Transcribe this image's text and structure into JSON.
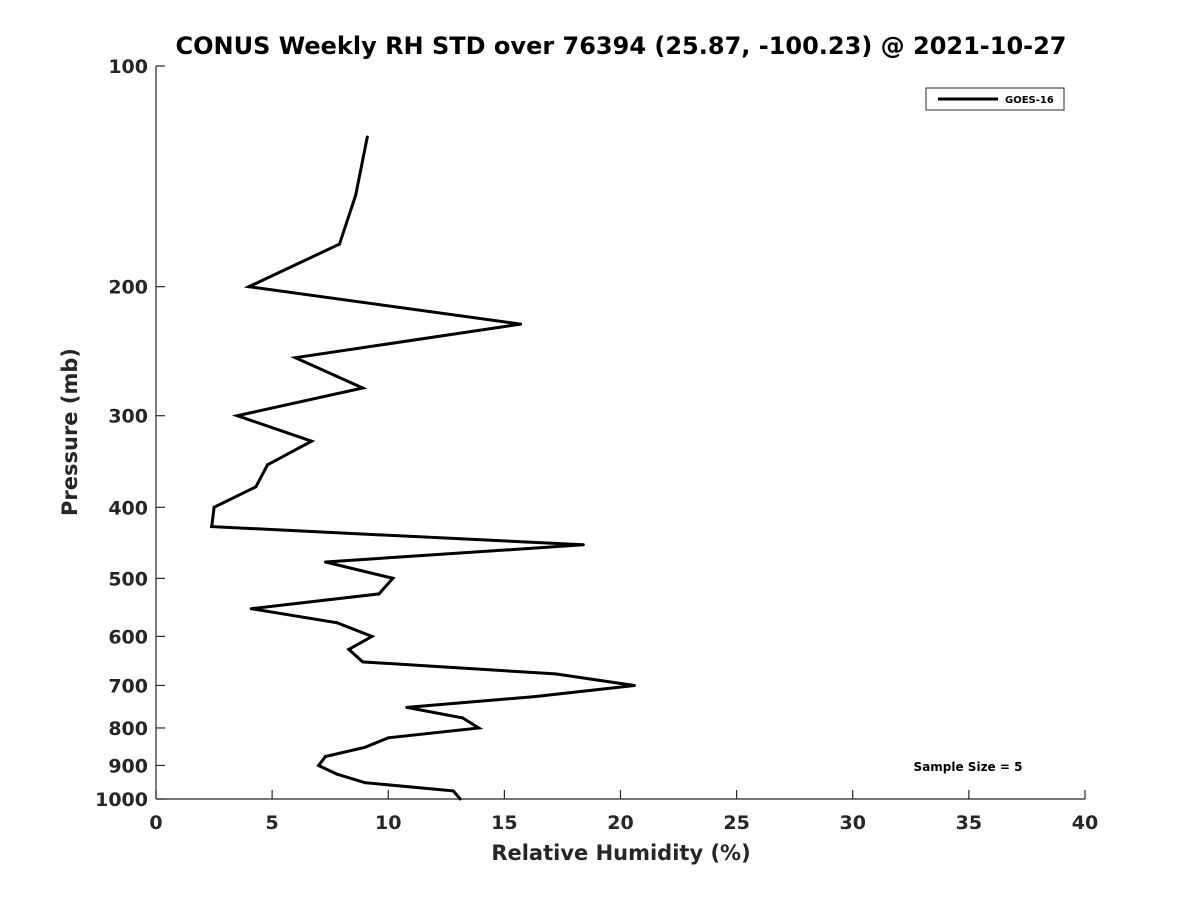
{
  "chart_data": {
    "type": "line",
    "title": "CONUS Weekly RH STD over 76394 (25.87, -100.23) @ 2021-10-27",
    "xlabel": "Relative Humidity (%)",
    "ylabel": "Pressure (mb)",
    "xlim": [
      0,
      40
    ],
    "ylim": [
      100,
      1000
    ],
    "y_scale": "log",
    "y_reversed": true,
    "x_ticks": [
      0,
      5,
      10,
      15,
      20,
      25,
      30,
      35,
      40
    ],
    "x_tick_labels": [
      "0",
      "5",
      "10",
      "15",
      "20",
      "25",
      "30",
      "35",
      "40"
    ],
    "y_ticks": [
      100,
      200,
      300,
      400,
      500,
      600,
      700,
      800,
      900,
      1000
    ],
    "y_tick_labels": [
      "100",
      "200",
      "300",
      "400",
      "500",
      "600",
      "700",
      "800",
      "900",
      "1000"
    ],
    "grid": false,
    "legend_position": "top-right",
    "annotation": "Sample Size = 5",
    "series": [
      {
        "name": "GOES-16",
        "color": "#000000",
        "points": [
          {
            "x": 9.1,
            "p": 125
          },
          {
            "x": 8.6,
            "p": 150
          },
          {
            "x": 7.9,
            "p": 175
          },
          {
            "x": 4.0,
            "p": 200
          },
          {
            "x": 15.7,
            "p": 225
          },
          {
            "x": 6.0,
            "p": 250
          },
          {
            "x": 8.9,
            "p": 275
          },
          {
            "x": 3.5,
            "p": 300
          },
          {
            "x": 6.7,
            "p": 325
          },
          {
            "x": 4.8,
            "p": 350
          },
          {
            "x": 4.3,
            "p": 375
          },
          {
            "x": 2.5,
            "p": 400
          },
          {
            "x": 2.4,
            "p": 425
          },
          {
            "x": 18.4,
            "p": 450
          },
          {
            "x": 7.3,
            "p": 475
          },
          {
            "x": 10.2,
            "p": 500
          },
          {
            "x": 9.6,
            "p": 525
          },
          {
            "x": 4.1,
            "p": 550
          },
          {
            "x": 7.8,
            "p": 575
          },
          {
            "x": 9.3,
            "p": 600
          },
          {
            "x": 8.3,
            "p": 625
          },
          {
            "x": 8.9,
            "p": 650
          },
          {
            "x": 17.2,
            "p": 675
          },
          {
            "x": 20.6,
            "p": 700
          },
          {
            "x": 16.3,
            "p": 725
          },
          {
            "x": 10.8,
            "p": 750
          },
          {
            "x": 13.2,
            "p": 775
          },
          {
            "x": 13.9,
            "p": 800
          },
          {
            "x": 10.0,
            "p": 825
          },
          {
            "x": 9.0,
            "p": 850
          },
          {
            "x": 7.3,
            "p": 875
          },
          {
            "x": 7.0,
            "p": 900
          },
          {
            "x": 7.8,
            "p": 925
          },
          {
            "x": 9.0,
            "p": 950
          },
          {
            "x": 12.8,
            "p": 975
          },
          {
            "x": 13.1,
            "p": 1000
          }
        ]
      }
    ]
  }
}
